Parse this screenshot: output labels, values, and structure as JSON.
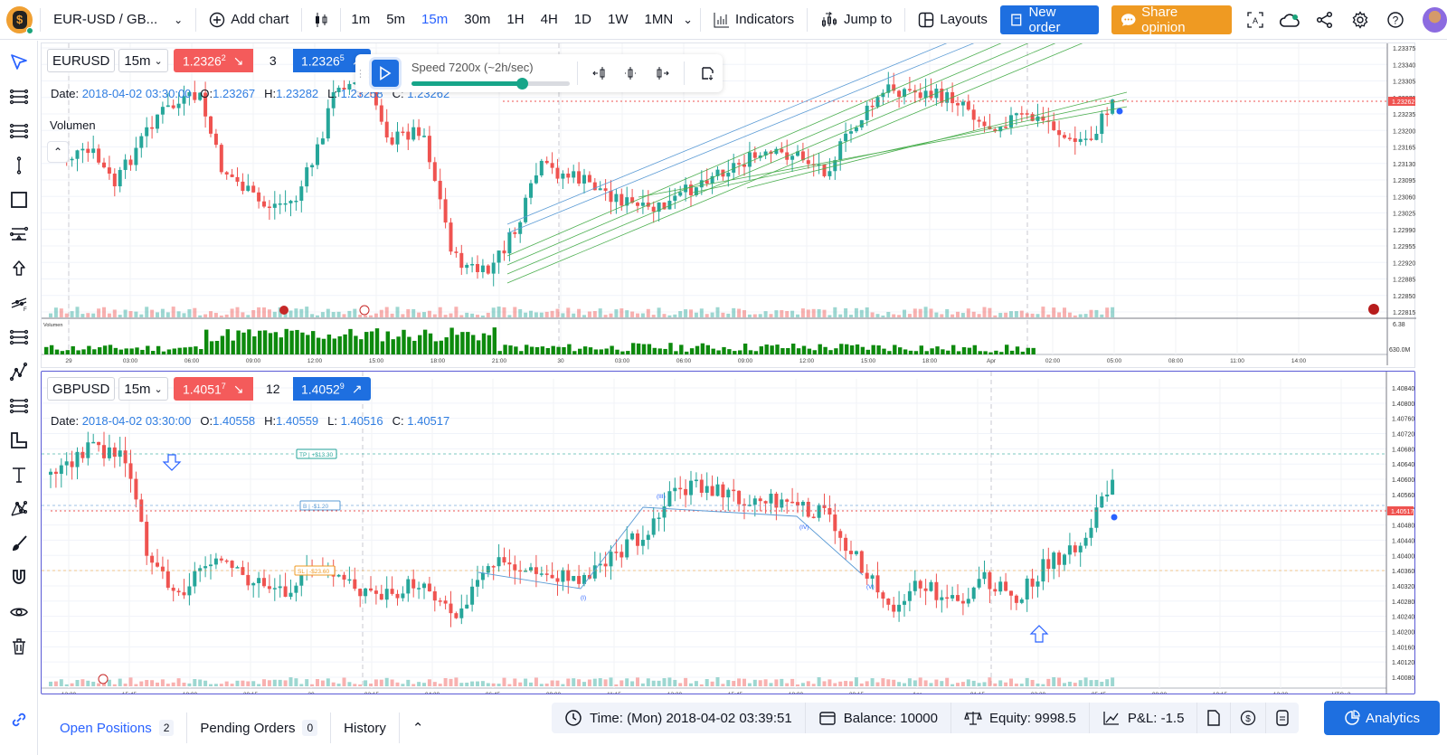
{
  "topbar": {
    "symbol_selector": "EUR-USD / GB...",
    "add_chart": "Add chart",
    "timeframes": [
      "1m",
      "5m",
      "15m",
      "30m",
      "1H",
      "4H",
      "1D",
      "1W",
      "1MN"
    ],
    "active_timeframe": "15m",
    "indicators": "Indicators",
    "jump_to": "Jump to",
    "layouts": "Layouts",
    "new_order": "New order",
    "share_opinion": "Share opinion",
    "icons": [
      "text-recognition-icon",
      "cloud-sync-icon",
      "share-icon",
      "settings-icon",
      "help-icon",
      "avatar"
    ]
  },
  "colors": {
    "accent": "#2962ff",
    "buy": "#1e6fe0",
    "sell": "#f45b5b",
    "up_candle": "#26a69a",
    "down_candle": "#ef5350",
    "orange": "#ef9a22",
    "volume_green": "#0d8a0d"
  },
  "replay": {
    "speed_label": "Speed 7200x (~2h/sec)",
    "speed_progress": 70
  },
  "chart1": {
    "symbol": "EURUSD",
    "timeframe": "15m",
    "sell_price_main": "1.2326",
    "sell_price_sup": "2",
    "quantity": "3",
    "buy_price_main": "1.2326",
    "buy_price_sup": "5",
    "date_label": "Date:",
    "date": "2018-04-02 03:30:00",
    "o_label": "O:",
    "o": "1.23267",
    "h_label": "H:",
    "h": "1.23282",
    "l_label": "L:",
    "l": "1.23258",
    "c_label": "C:",
    "c": "1.23262",
    "volume_indicator": "Volumen",
    "volume_pane_label": "Volumen",
    "current_price": "1.23262",
    "price_axis": [
      "1.23375",
      "1.23340",
      "1.23305",
      "1.23270",
      "1.23235",
      "1.23200",
      "1.23165",
      "1.23130",
      "1.23095",
      "1.23060",
      "1.23025",
      "1.22990",
      "1.22955",
      "1.22920",
      "1.22885",
      "1.22850",
      "1.22815"
    ],
    "volume_axis": [
      "6.38",
      "630.0M"
    ],
    "time_axis": [
      "29",
      "03:00",
      "06:00",
      "09:00",
      "12:00",
      "15:00",
      "18:00",
      "21:00",
      "30",
      "03:00",
      "06:00",
      "09:00",
      "12:00",
      "15:00",
      "18:00",
      "Apr",
      "02:00",
      "05:00",
      "08:00",
      "11:00",
      "14:00"
    ]
  },
  "chart2": {
    "symbol": "GBPUSD",
    "timeframe": "15m",
    "sell_price_main": "1.4051",
    "sell_price_sup": "7",
    "quantity": "12",
    "buy_price_main": "1.4052",
    "buy_price_sup": "9",
    "date_label": "Date:",
    "date": "2018-04-02 03:30:00",
    "o_label": "O:",
    "o": "1.40558",
    "h_label": "H:",
    "h": "1.40559",
    "l_label": "L:",
    "l": "1.40516",
    "c_label": "C:",
    "c": "1.40517",
    "current_price": "1.40517",
    "tp_label": "TP",
    "tp_value": "+$13.30",
    "entry_label": "B",
    "entry_value": "-$1.20",
    "sl_label": "SL",
    "sl_value": "-$23.60",
    "wave_labels": [
      "(I)",
      "(III)",
      "(IV)",
      "(V)"
    ],
    "price_axis": [
      "1.40840",
      "1.40800",
      "1.40760",
      "1.40720",
      "1.40680",
      "1.40640",
      "1.40600",
      "1.40560",
      "1.40517",
      "1.40480",
      "1.40440",
      "1.40400",
      "1.40360",
      "1.40320",
      "1.40280",
      "1.40240",
      "1.40200",
      "1.40160",
      "1.40120",
      "1.40080"
    ],
    "time_axis": [
      "13:30",
      "15:45",
      "18:00",
      "20:15",
      "30",
      "02:15",
      "04:30",
      "06:45",
      "09:00",
      "11:15",
      "13:30",
      "15:45",
      "18:00",
      "20:15",
      "Apr",
      "01:15",
      "03:30",
      "05:45",
      "08:00",
      "10:15",
      "12:30",
      "UTC+2"
    ]
  },
  "bottombar": {
    "tabs": [
      {
        "label": "Open Positions",
        "count": "2"
      },
      {
        "label": "Pending Orders",
        "count": "0"
      },
      {
        "label": "History"
      }
    ],
    "time": "Time: (Mon) 2018-04-02 03:39:51",
    "balance": "Balance: 10000",
    "equity": "Equity: 9998.5",
    "pnl": "P&L: -1.5",
    "analytics": "Analytics"
  },
  "sidebar": {
    "tools": [
      "cursor-icon",
      "parallel-channel-icon",
      "channel-icon",
      "vertical-line-icon",
      "rectangle-icon",
      "fib-retracement-icon",
      "arrow-up-icon",
      "fib-fan-icon",
      "pitchfork-icon",
      "elliott-wave-icon",
      "channel-2-icon",
      "ruler-icon",
      "text-icon",
      "pattern-icon",
      "brush-icon",
      "magnet-icon",
      "eye-icon",
      "trash-icon"
    ]
  }
}
